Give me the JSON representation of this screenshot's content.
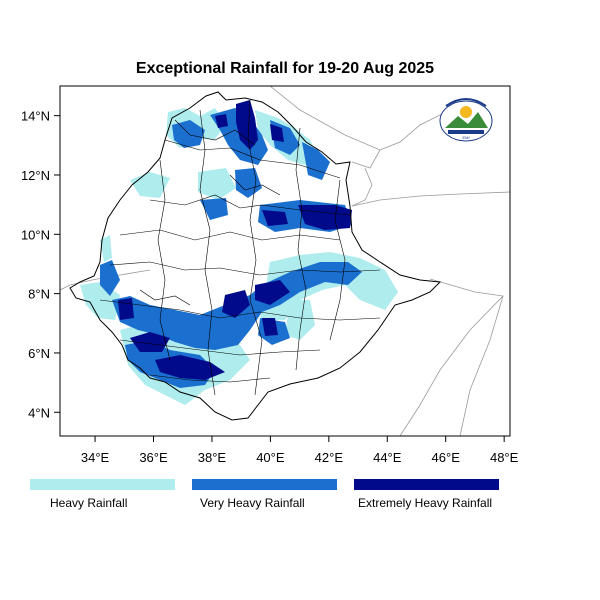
{
  "title": "Exceptional Rainfall for 19-20 Aug 2025",
  "axes": {
    "x_ticks": [
      "34°E",
      "36°E",
      "38°E",
      "40°E",
      "42°E",
      "44°E",
      "46°E",
      "48°E"
    ],
    "x_values": [
      34,
      36,
      38,
      40,
      42,
      44,
      46,
      48
    ],
    "y_ticks": [
      "4°N",
      "6°N",
      "8°N",
      "10°N",
      "12°N",
      "14°N"
    ],
    "y_values": [
      4,
      6,
      8,
      10,
      12,
      14
    ],
    "x_range": [
      32.8,
      48.2
    ],
    "y_range": [
      3.2,
      15.0
    ]
  },
  "legend": {
    "items": [
      {
        "label": "Heavy Rainfall",
        "color": "#aeecee"
      },
      {
        "label": "Very Heavy Rainfall",
        "color": "#1a6fcf"
      },
      {
        "label": "Extremely Heavy Rainfall",
        "color": "#000a8a"
      }
    ]
  },
  "colors": {
    "heavy": "#aeecee",
    "very_heavy": "#1a6fcf",
    "extreme": "#000a8a",
    "boundary": "#000000",
    "neighbor": "#9a9a9a"
  },
  "logo": {
    "icon": "ethiopian-meteorology-institute-logo",
    "caption": "EMI"
  }
}
